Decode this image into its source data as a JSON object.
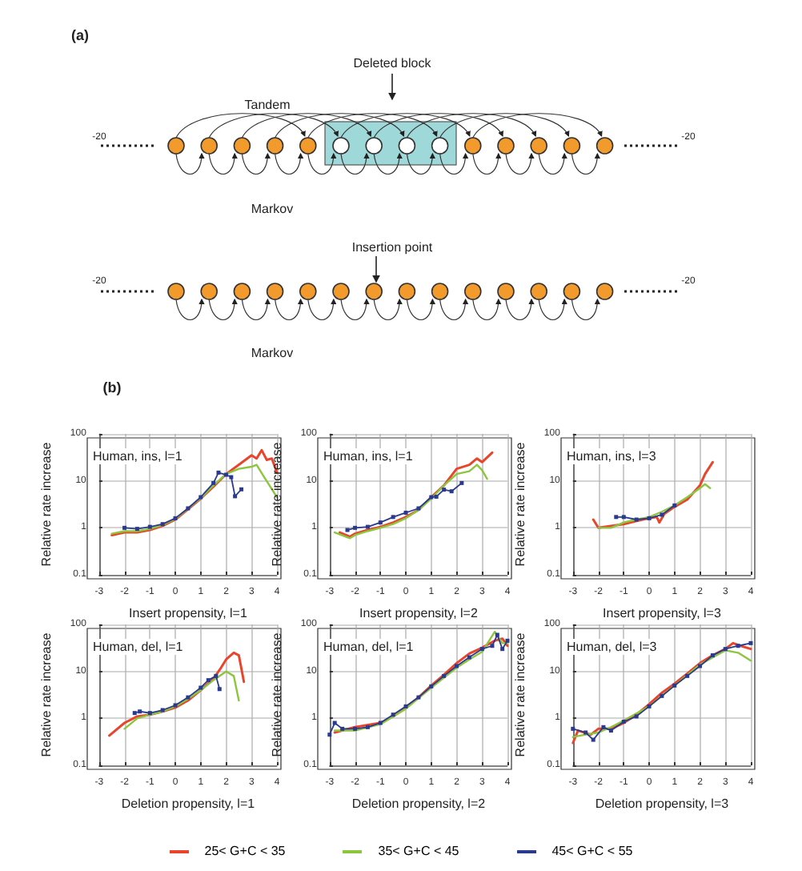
{
  "chart_data": [
    {
      "type": "other",
      "title": "(a)",
      "annotations": [
        "Deleted block",
        "Tandem",
        "-20",
        "-20",
        "Markov",
        "Insertion point",
        "-20",
        "-20",
        "Markov",
        "(b)"
      ]
    },
    {
      "type": "line",
      "annotations": [
        "Human, ins, l=1"
      ],
      "xlabel": "Insert propensity, l=1",
      "ylabel": "Relative rate increase",
      "xlim": [
        -3,
        4
      ],
      "xticks": [
        -3,
        -2,
        -1,
        0,
        1,
        2,
        3,
        4
      ],
      "ylim": [
        0.1,
        100
      ],
      "yticks": [
        0.1,
        1,
        10,
        100
      ],
      "log": true,
      "grid": true,
      "legend": "bottom",
      "line_style": "solid",
      "series": [
        {
          "name": "25< G+C < 35",
          "color": "#e8452c",
          "marker": "none",
          "x": [
            -2.5,
            -2,
            -1.5,
            -1,
            -0.5,
            0,
            0.5,
            1,
            1.5,
            2,
            2.5,
            3,
            3.2,
            3.4,
            3.6,
            3.8,
            4
          ],
          "values": [
            0.7,
            0.8,
            0.8,
            0.9,
            1.1,
            1.5,
            2.5,
            4.2,
            7.5,
            14,
            22,
            35,
            30,
            45,
            28,
            30,
            15
          ]
        },
        {
          "name": "35< G+C < 45",
          "color": "#8cc63e",
          "marker": "none",
          "x": [
            -2.5,
            -2,
            -1.5,
            -1,
            -0.5,
            0,
            0.5,
            1,
            1.5,
            2,
            2.5,
            3,
            3.2,
            3.5,
            4
          ],
          "values": [
            0.75,
            0.85,
            0.85,
            0.95,
            1.15,
            1.55,
            2.6,
            4.3,
            8,
            14,
            18,
            20,
            22,
            12,
            4.5
          ]
        },
        {
          "name": "45< G+C < 55",
          "color": "#2a3a8f",
          "marker": "square",
          "x": [
            -2,
            -1.5,
            -1,
            -0.5,
            0,
            0.5,
            1,
            1.5,
            1.7,
            2,
            2.2,
            2.35,
            2.6
          ],
          "values": [
            1,
            0.95,
            1.05,
            1.2,
            1.6,
            2.6,
            4.5,
            9,
            15,
            13.5,
            12,
            4.7,
            6.6
          ]
        }
      ]
    },
    {
      "type": "line",
      "annotations": [
        "Human, ins, l=1"
      ],
      "xlabel": "Insert propensity, l=2",
      "ylabel": "Relative rate increase",
      "xlim": [
        -3,
        4
      ],
      "xticks": [
        -3,
        -2,
        -1,
        0,
        1,
        2,
        3,
        4
      ],
      "ylim": [
        0.1,
        100
      ],
      "yticks": [
        0.1,
        1,
        10,
        100
      ],
      "log": true,
      "grid": true,
      "line_style": "solid",
      "series": [
        {
          "color": "#e8452c",
          "marker": "none",
          "x": [
            -2.6,
            -2.2,
            -2,
            -1.5,
            -1,
            -0.5,
            0,
            0.5,
            1,
            1.5,
            2,
            2.5,
            2.8,
            3,
            3.4
          ],
          "values": [
            0.8,
            0.65,
            0.75,
            0.9,
            1.05,
            1.3,
            1.7,
            2.4,
            4.5,
            8,
            18,
            22,
            30,
            25,
            40
          ]
        },
        {
          "color": "#8cc63e",
          "marker": "none",
          "x": [
            -2.8,
            -2.2,
            -2,
            -1.5,
            -1,
            -0.5,
            0,
            0.5,
            1,
            1.5,
            2,
            2.5,
            2.8,
            3,
            3.2
          ],
          "values": [
            0.8,
            0.6,
            0.7,
            0.85,
            1,
            1.2,
            1.6,
            2.4,
            4.2,
            8,
            14,
            16,
            22,
            17,
            11
          ]
        },
        {
          "color": "#2a3a8f",
          "marker": "square",
          "x": [
            -2.3,
            -2,
            -1.5,
            -1,
            -0.5,
            0,
            0.5,
            1,
            1.2,
            1.5,
            1.8,
            2.2
          ],
          "values": [
            0.9,
            1,
            1.05,
            1.3,
            1.7,
            2.1,
            2.6,
            4.5,
            4.6,
            6.5,
            6,
            9
          ]
        }
      ]
    },
    {
      "type": "line",
      "annotations": [
        "Human, ins, l=3"
      ],
      "xlabel": "Insert propensity, l=3",
      "ylabel": "Relative rate increase",
      "xlim": [
        -3,
        4
      ],
      "xticks": [
        -3,
        -2,
        -1,
        0,
        1,
        2,
        3,
        4
      ],
      "ylim": [
        0.1,
        100
      ],
      "yticks": [
        0.1,
        1,
        10,
        100
      ],
      "log": true,
      "grid": true,
      "line_style": "solid",
      "series": [
        {
          "color": "#e8452c",
          "marker": "none",
          "x": [
            -2.2,
            -2,
            -1.5,
            -1,
            -0.5,
            0,
            0.3,
            0.4,
            0.6,
            1,
            1.5,
            2,
            2.2,
            2.5
          ],
          "values": [
            1.5,
            1,
            1.1,
            1.2,
            1.4,
            1.6,
            1.7,
            1.3,
            2,
            2.8,
            4,
            8,
            14,
            25
          ]
        },
        {
          "color": "#8cc63e",
          "marker": "none",
          "x": [
            -2,
            -1.5,
            -1,
            -0.5,
            0,
            0.5,
            1,
            1.5,
            2,
            2.2,
            2.4
          ],
          "values": [
            1,
            1,
            1.3,
            1.5,
            1.7,
            2.2,
            3,
            4.5,
            7,
            8.5,
            7
          ]
        },
        {
          "color": "#2a3a8f",
          "marker": "square",
          "x": [
            -1.3,
            -1,
            -0.5,
            0,
            0.5,
            1
          ],
          "values": [
            1.7,
            1.7,
            1.5,
            1.6,
            1.9,
            3
          ]
        }
      ]
    },
    {
      "type": "line",
      "annotations": [
        "Human, del, l=1"
      ],
      "xlabel": "Deletion propensity, l=1",
      "ylabel": "Relative rate increase",
      "xlim": [
        -3,
        4
      ],
      "xticks": [
        -3,
        -2,
        -1,
        0,
        1,
        2,
        3,
        4
      ],
      "ylim": [
        0.1,
        100
      ],
      "yticks": [
        0.1,
        1,
        10,
        100
      ],
      "log": true,
      "grid": true,
      "line_style": "solid",
      "series": [
        {
          "color": "#e8452c",
          "marker": "none",
          "x": [
            -2.6,
            -2,
            -1.5,
            -1,
            -0.5,
            0,
            0.5,
            1,
            1.5,
            1.8,
            2,
            2.3,
            2.5,
            2.7
          ],
          "values": [
            0.43,
            0.8,
            1.1,
            1.2,
            1.4,
            1.7,
            2.4,
            4,
            7,
            12,
            18,
            25,
            22,
            6
          ]
        },
        {
          "color": "#8cc63e",
          "marker": "none",
          "x": [
            -2,
            -1.5,
            -1,
            -0.5,
            0,
            0.5,
            1,
            1.5,
            2,
            2.3,
            2.5
          ],
          "values": [
            0.6,
            1,
            1.2,
            1.4,
            1.8,
            2.6,
            4,
            6.5,
            10,
            8,
            2.4
          ]
        },
        {
          "color": "#2a3a8f",
          "marker": "square",
          "x": [
            -1.6,
            -1.4,
            -1,
            -0.5,
            0,
            0.5,
            1,
            1.3,
            1.6,
            1.74
          ],
          "values": [
            1.3,
            1.4,
            1.3,
            1.5,
            1.9,
            2.8,
            4.5,
            6.5,
            8,
            4.2
          ]
        }
      ]
    },
    {
      "type": "line",
      "annotations": [
        "Human, del, l=1"
      ],
      "xlabel": "Deletion propensity, l=2",
      "ylabel": "Relative rate increase",
      "xlim": [
        -3,
        4
      ],
      "xticks": [
        -3,
        -2,
        -1,
        0,
        1,
        2,
        3,
        4
      ],
      "ylim": [
        0.1,
        100
      ],
      "yticks": [
        0.1,
        1,
        10,
        100
      ],
      "log": true,
      "grid": true,
      "line_style": "solid",
      "series": [
        {
          "color": "#e8452c",
          "marker": "none",
          "x": [
            -2.8,
            -2,
            -1,
            -0.5,
            0,
            0.5,
            1,
            1.5,
            2,
            2.5,
            3,
            3.5,
            3.8,
            4
          ],
          "values": [
            0.5,
            0.65,
            0.8,
            1.1,
            1.7,
            2.8,
            5,
            8.5,
            15,
            24,
            32,
            45,
            50,
            35
          ]
        },
        {
          "color": "#8cc63e",
          "marker": "none",
          "x": [
            -2.8,
            -2,
            -1,
            0,
            1,
            2,
            2.5,
            3,
            3.5,
            3.8,
            4
          ],
          "values": [
            0.55,
            0.55,
            0.75,
            1.6,
            4.5,
            12,
            18,
            26,
            70,
            40,
            40
          ]
        },
        {
          "color": "#2a3a8f",
          "marker": "square",
          "x": [
            -3,
            -2.8,
            -2.5,
            -2,
            -1.5,
            -1,
            -0.5,
            0,
            0.5,
            1,
            1.5,
            2,
            2.5,
            3,
            3.4,
            3.6,
            3.8,
            4
          ],
          "values": [
            0.45,
            0.8,
            0.6,
            0.6,
            0.65,
            0.8,
            1.2,
            1.8,
            2.8,
            4.8,
            8,
            13,
            20,
            30,
            35,
            60,
            30,
            45
          ]
        }
      ]
    },
    {
      "type": "line",
      "annotations": [
        "Human, del, l=3"
      ],
      "xlabel": "Deletion propensity, l=3",
      "ylabel": "Relative rate increase",
      "xlim": [
        -3,
        4
      ],
      "xticks": [
        -3,
        -2,
        -1,
        0,
        1,
        2,
        3,
        4
      ],
      "ylim": [
        0.1,
        100
      ],
      "yticks": [
        0.1,
        1,
        10,
        100
      ],
      "log": true,
      "grid": true,
      "line_style": "solid",
      "series": [
        {
          "color": "#e8452c",
          "marker": "none",
          "x": [
            -3,
            -2.8,
            -2.3,
            -2,
            -1.5,
            -1,
            -0.5,
            0,
            0.5,
            1,
            1.5,
            2,
            2.5,
            3,
            3.3,
            3.6,
            4
          ],
          "values": [
            0.3,
            0.55,
            0.45,
            0.6,
            0.6,
            0.8,
            1.2,
            2,
            3.5,
            5.5,
            9,
            15,
            22,
            30,
            40,
            35,
            30
          ]
        },
        {
          "color": "#8cc63e",
          "marker": "none",
          "x": [
            -3,
            -2.5,
            -2,
            -1.5,
            -1,
            0,
            1,
            2,
            3,
            3.5,
            4
          ],
          "values": [
            0.4,
            0.45,
            0.5,
            0.65,
            0.9,
            1.8,
            5,
            14,
            28,
            25,
            17
          ]
        },
        {
          "color": "#2a3a8f",
          "marker": "square",
          "x": [
            -3,
            -2.5,
            -2.2,
            -1.8,
            -1.5,
            -1,
            -0.5,
            0,
            0.5,
            1,
            1.5,
            2,
            2.5,
            3,
            3.5,
            4
          ],
          "values": [
            0.6,
            0.5,
            0.35,
            0.65,
            0.55,
            0.85,
            1.1,
            1.8,
            3,
            5,
            8,
            13,
            22,
            30,
            35,
            40
          ]
        }
      ]
    }
  ]
}
